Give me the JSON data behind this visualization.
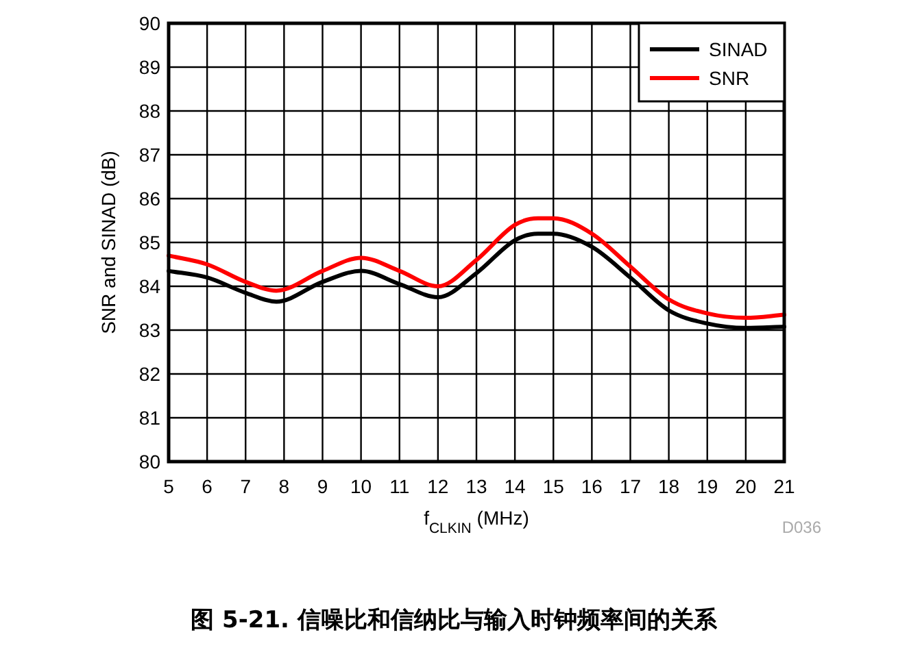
{
  "chart_data": {
    "type": "line",
    "xlabel": "f$_{CLKIN}$ (MHz)",
    "ylabel": "SNR and SINAD (dB)",
    "x": [
      5,
      6,
      7,
      7.8,
      9,
      10,
      11,
      12,
      13,
      14,
      14.6,
      15,
      16,
      17,
      18,
      19,
      20,
      21
    ],
    "series": [
      {
        "name": "SINAD",
        "color": "#000000",
        "values": [
          84.35,
          84.2,
          83.85,
          83.65,
          84.1,
          84.35,
          84.05,
          83.75,
          84.3,
          85.05,
          85.2,
          85.2,
          84.9,
          84.2,
          83.45,
          83.15,
          83.05,
          83.08
        ]
      },
      {
        "name": "SNR",
        "color": "#ff0000",
        "values": [
          84.7,
          84.5,
          84.1,
          83.9,
          84.35,
          84.65,
          84.35,
          84.0,
          84.6,
          85.4,
          85.55,
          85.55,
          85.2,
          84.45,
          83.7,
          83.38,
          83.28,
          83.35
        ]
      }
    ],
    "xlim": [
      5,
      21
    ],
    "xticks": [
      5,
      6,
      7,
      8,
      9,
      10,
      11,
      12,
      13,
      14,
      15,
      16,
      17,
      18,
      19,
      20,
      21
    ],
    "ylim": [
      80,
      90
    ],
    "yticks": [
      80,
      81,
      82,
      83,
      84,
      85,
      86,
      87,
      88,
      89,
      90
    ],
    "grid": true,
    "legend": "top right",
    "line_style": "solid",
    "marker": "none",
    "annotations": [
      "D036",
      "图 5-21. 信噪比和信纳比与输入时钟频率间的关系"
    ]
  }
}
